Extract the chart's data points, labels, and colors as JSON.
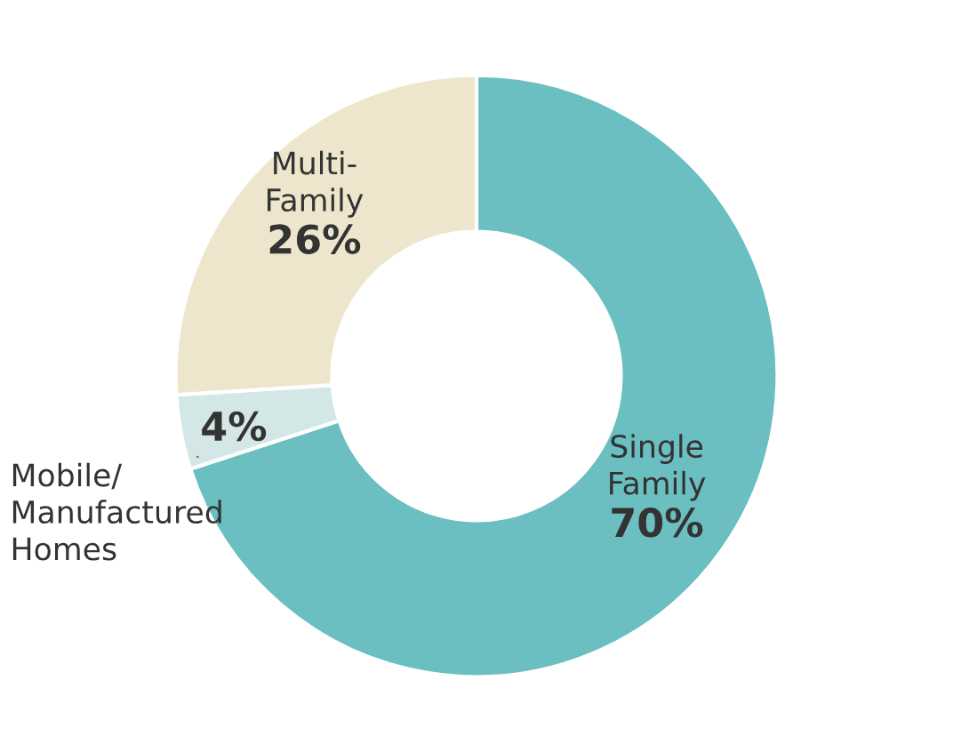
{
  "chart_data": {
    "type": "donut",
    "categories": [
      "Single\nFamily",
      "Mobile/\nManufactured\nHomes",
      "Multi-\nFamily"
    ],
    "values": [
      70,
      4,
      26
    ],
    "colors": [
      "#6bbfc1",
      "#d3e7e7",
      "#ede6cc"
    ],
    "value_labels": [
      "70%",
      "4%",
      "26%"
    ],
    "legend": false
  }
}
